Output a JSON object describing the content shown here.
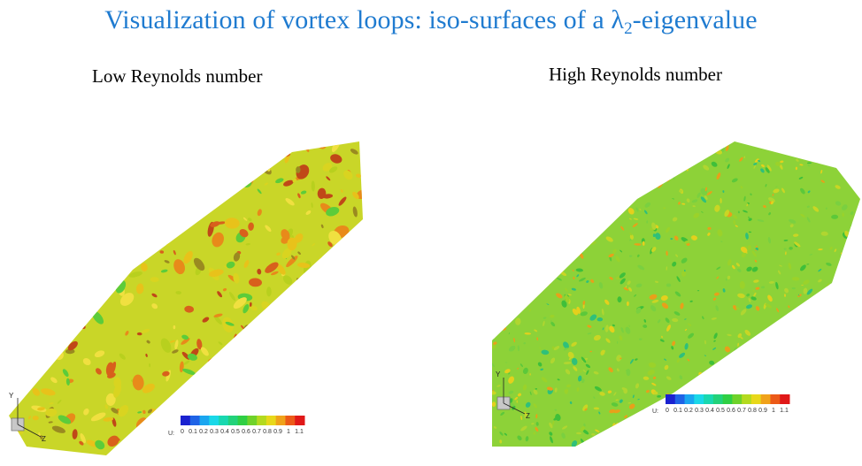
{
  "title": {
    "prefix": "Visualization of vortex loops: iso-surfaces of a ",
    "lambda": "λ",
    "subscript": "2",
    "suffix": "-eigenvalue"
  },
  "panels": [
    {
      "label": "Low Reynolds number",
      "colorbar": {
        "variable": "U:",
        "ticks": [
          "0",
          "0.1",
          "0.2",
          "0.3",
          "0.4",
          "0.5",
          "0.6",
          "0.7",
          "0.8",
          "0.9",
          "1",
          "1.1"
        ],
        "colors": [
          "#1a22d0",
          "#1f63e6",
          "#1aa6f0",
          "#1ad8e8",
          "#19d8b0",
          "#22d27a",
          "#2fcf44",
          "#6fd22a",
          "#b4da1f",
          "#e8d81a",
          "#f0a21a",
          "#ec5a18",
          "#e01818"
        ]
      },
      "axes": {
        "y": "Y",
        "z": "Z"
      }
    },
    {
      "label": "High Reynolds number",
      "colorbar": {
        "variable": "U:",
        "ticks": [
          "0",
          "0.1",
          "0.2",
          "0.3",
          "0.4",
          "0.5",
          "0.6",
          "0.7",
          "0.8",
          "0.9",
          "1",
          "1.1"
        ],
        "colors": [
          "#1a22d0",
          "#1f63e6",
          "#1aa6f0",
          "#1ad8e8",
          "#19d8b0",
          "#22d27a",
          "#2fcf44",
          "#6fd22a",
          "#b4da1f",
          "#e8d81a",
          "#f0a21a",
          "#ec5a18",
          "#e01818"
        ]
      },
      "axes": {
        "y": "Y",
        "z": "Z"
      }
    }
  ]
}
